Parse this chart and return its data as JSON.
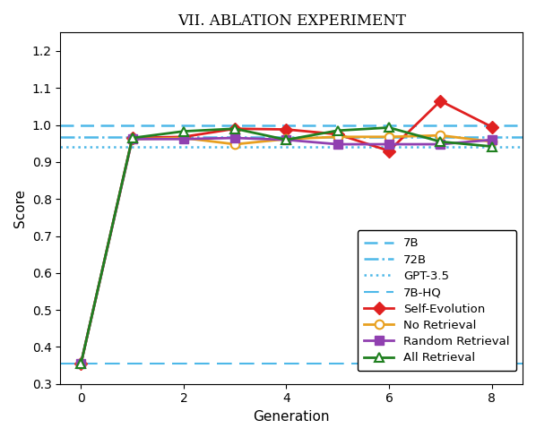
{
  "title": "VII. ABLATION EXPERIMENT",
  "xlabel": "Generation",
  "ylabel": "Score",
  "ylim": [
    0.3,
    1.25
  ],
  "yticks": [
    0.3,
    0.4,
    0.5,
    0.6,
    0.7,
    0.8,
    0.9,
    1.0,
    1.1,
    1.2
  ],
  "xticks": [
    0,
    2,
    4,
    6,
    8
  ],
  "generations": [
    0,
    1,
    2,
    3,
    4,
    5,
    6,
    7,
    8
  ],
  "self_evolution": [
    0.355,
    0.965,
    0.968,
    0.99,
    0.988,
    0.975,
    0.93,
    1.065,
    0.995
  ],
  "no_retrieval": [
    0.355,
    0.962,
    0.965,
    0.948,
    0.962,
    0.968,
    0.968,
    0.972,
    0.955
  ],
  "random_retrieval": [
    0.355,
    0.962,
    0.962,
    0.965,
    0.96,
    0.948,
    0.948,
    0.948,
    0.96
  ],
  "all_retrieval": [
    0.355,
    0.965,
    0.983,
    0.99,
    0.96,
    0.985,
    0.993,
    0.955,
    0.942
  ],
  "line_7B": 1.0,
  "line_72B": 0.967,
  "line_GPT35": 0.94,
  "line_7B_HQ": 0.355,
  "color_7B": "#4db8e8",
  "color_72B": "#4db8e8",
  "color_GPT35": "#4db8e8",
  "color_7B_HQ": "#4db8e8",
  "color_self_evolution": "#e02020",
  "color_no_retrieval": "#e8a020",
  "color_random_retrieval": "#9040b0",
  "color_all_retrieval": "#208020",
  "title_fontsize": 12,
  "label_fontsize": 11,
  "tick_fontsize": 10,
  "legend_fontsize": 9.5
}
